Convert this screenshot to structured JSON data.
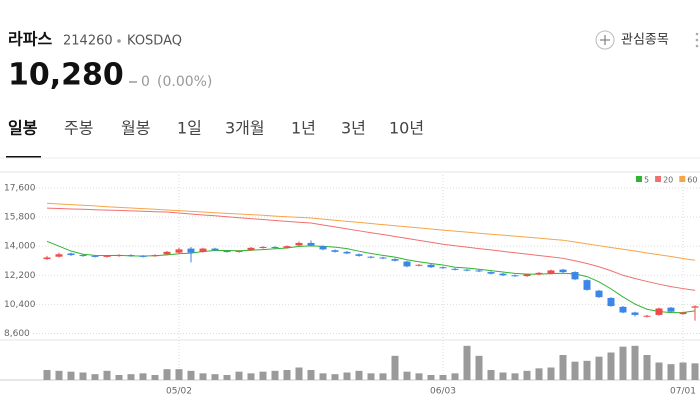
{
  "stock": {
    "name": "라파스",
    "code": "214260",
    "market": "KOSDAQ",
    "price": "10,280",
    "change": "0",
    "change_pct": "(0.00%)",
    "favorite": "관심종목"
  },
  "tabs": [
    "일봉",
    "주봉",
    "월봉",
    "1일",
    "3개월",
    "1년",
    "3년",
    "10년"
  ],
  "active_tab": 0,
  "chart_data": {
    "type": "candlestick",
    "categories": [
      null,
      null,
      null,
      null,
      null,
      null,
      null,
      null,
      null,
      null,
      null,
      "05/02",
      null,
      null,
      null,
      null,
      null,
      null,
      null,
      null,
      null,
      null,
      null,
      null,
      null,
      null,
      null,
      null,
      null,
      null,
      null,
      null,
      null,
      "06/03",
      null,
      null,
      null,
      null,
      null,
      null,
      null,
      null,
      null,
      null,
      null,
      null,
      null,
      null,
      null,
      null,
      null,
      null,
      null,
      "07/01",
      null
    ],
    "open": [
      13200,
      13350,
      13550,
      13450,
      13400,
      13350,
      13400,
      13450,
      13400,
      13380,
      13500,
      13600,
      13850,
      13650,
      13850,
      13700,
      13650,
      13750,
      13900,
      13950,
      13900,
      14050,
      14200,
      14000,
      13750,
      13650,
      13500,
      13350,
      13300,
      13200,
      13050,
      12800,
      12850,
      12700,
      12600,
      12550,
      12500,
      12400,
      12300,
      12200,
      12150,
      12250,
      12300,
      12550,
      12400,
      11900,
      11250,
      10800,
      10250,
      9900,
      9650,
      9750,
      10200,
      9800,
      10200
    ],
    "high": [
      13400,
      13600,
      13600,
      13500,
      13450,
      13450,
      13500,
      13500,
      13450,
      13500,
      13700,
      13900,
      13950,
      13900,
      13900,
      13750,
      13750,
      13950,
      14000,
      14000,
      14050,
      14300,
      14350,
      14050,
      13800,
      13700,
      13550,
      13400,
      13350,
      13250,
      13100,
      12900,
      12900,
      12750,
      12650,
      12600,
      12550,
      12450,
      12350,
      12250,
      12300,
      12400,
      12550,
      12600,
      12450,
      11950,
      11300,
      10850,
      10300,
      9950,
      9750,
      10200,
      10250,
      9950,
      10350
    ],
    "low": [
      13150,
      13300,
      13400,
      13350,
      13300,
      13300,
      13350,
      13350,
      13300,
      13350,
      13450,
      13550,
      13000,
      13600,
      13700,
      13600,
      13600,
      13700,
      13850,
      13850,
      13850,
      14000,
      14000,
      13750,
      13600,
      13500,
      13350,
      13250,
      13200,
      13050,
      12700,
      12750,
      12650,
      12600,
      12500,
      12450,
      12400,
      12250,
      12150,
      12100,
      12100,
      12200,
      12250,
      12350,
      11900,
      11250,
      10800,
      10250,
      9850,
      9650,
      9600,
      9700,
      9900,
      9750,
      9400
    ],
    "close": [
      13300,
      13500,
      13450,
      13400,
      13350,
      13400,
      13450,
      13400,
      13350,
      13450,
      13650,
      13800,
      13600,
      13850,
      13750,
      13650,
      13700,
      13900,
      13950,
      13900,
      14000,
      14200,
      14050,
      13800,
      13650,
      13550,
      13400,
      13300,
      13250,
      13100,
      12750,
      12850,
      12700,
      12650,
      12550,
      12500,
      12450,
      12300,
      12200,
      12150,
      12250,
      12350,
      12500,
      12400,
      11950,
      11300,
      10850,
      10300,
      9900,
      9750,
      9700,
      10150,
      9950,
      9900,
      10280
    ],
    "up_color": "#f04b4b",
    "down_color": "#3b86e6",
    "series": [
      {
        "name": "5",
        "color": "#2fb52f",
        "values": [
          14300,
          14000,
          13700,
          13500,
          13430,
          13420,
          13430,
          13400,
          13390,
          13410,
          13460,
          13530,
          13570,
          13670,
          13730,
          13730,
          13720,
          13750,
          13790,
          13840,
          13890,
          13990,
          14020,
          13990,
          13940,
          13850,
          13690,
          13550,
          13430,
          13320,
          13160,
          13040,
          12930,
          12840,
          12700,
          12650,
          12570,
          12490,
          12400,
          12320,
          12270,
          12270,
          12300,
          12330,
          12290,
          12120,
          11800,
          11360,
          10860,
          10420,
          10100,
          9960,
          9890,
          9900,
          10000
        ]
      },
      {
        "name": "20",
        "color": "#f07070",
        "values": [
          16350,
          16330,
          16300,
          16280,
          16250,
          16230,
          16210,
          16180,
          16160,
          16130,
          16110,
          16050,
          15990,
          15930,
          15880,
          15820,
          15760,
          15700,
          15650,
          15590,
          15530,
          15480,
          15430,
          15310,
          15190,
          15070,
          14950,
          14830,
          14720,
          14600,
          14480,
          14360,
          14240,
          14120,
          14030,
          13940,
          13850,
          13770,
          13680,
          13590,
          13510,
          13420,
          13340,
          13250,
          13100,
          12930,
          12730,
          12480,
          12200,
          12000,
          11820,
          11650,
          11500,
          11380,
          11270
        ]
      },
      {
        "name": "60",
        "color": "#f5a54a",
        "values": [
          16650,
          16610,
          16570,
          16530,
          16490,
          16440,
          16400,
          16360,
          16320,
          16280,
          16240,
          16200,
          16150,
          16110,
          16070,
          16030,
          15990,
          15950,
          15910,
          15860,
          15820,
          15780,
          15740,
          15670,
          15600,
          15530,
          15470,
          15400,
          15330,
          15260,
          15200,
          15130,
          15060,
          14990,
          14930,
          14870,
          14800,
          14740,
          14680,
          14620,
          14560,
          14500,
          14430,
          14370,
          14260,
          14140,
          14030,
          13920,
          13810,
          13700,
          13580,
          13470,
          13360,
          13240,
          13130
        ]
      }
    ],
    "volume": {
      "color": "#9a9a9a",
      "ylim": [
        0,
        420000
      ],
      "values": [
        120000,
        110000,
        100000,
        90000,
        70000,
        110000,
        60000,
        70000,
        80000,
        60000,
        130000,
        130000,
        110000,
        80000,
        70000,
        60000,
        100000,
        80000,
        100000,
        110000,
        120000,
        150000,
        120000,
        80000,
        70000,
        90000,
        110000,
        80000,
        80000,
        290000,
        100000,
        80000,
        60000,
        60000,
        80000,
        410000,
        290000,
        120000,
        90000,
        80000,
        110000,
        140000,
        150000,
        300000,
        220000,
        230000,
        280000,
        330000,
        400000,
        410000,
        300000,
        210000,
        190000,
        210000,
        200000
      ]
    },
    "ylim": [
      8200,
      18400
    ],
    "yticks": [
      {
        "value": 8600,
        "label": "8,600"
      },
      {
        "value": 10400,
        "label": "10,400"
      },
      {
        "value": 12200,
        "label": "12,200"
      },
      {
        "value": 14000,
        "label": "14,000"
      },
      {
        "value": 15800,
        "label": "15,800"
      },
      {
        "value": 17600,
        "label": "17,600"
      }
    ],
    "grid": true
  }
}
